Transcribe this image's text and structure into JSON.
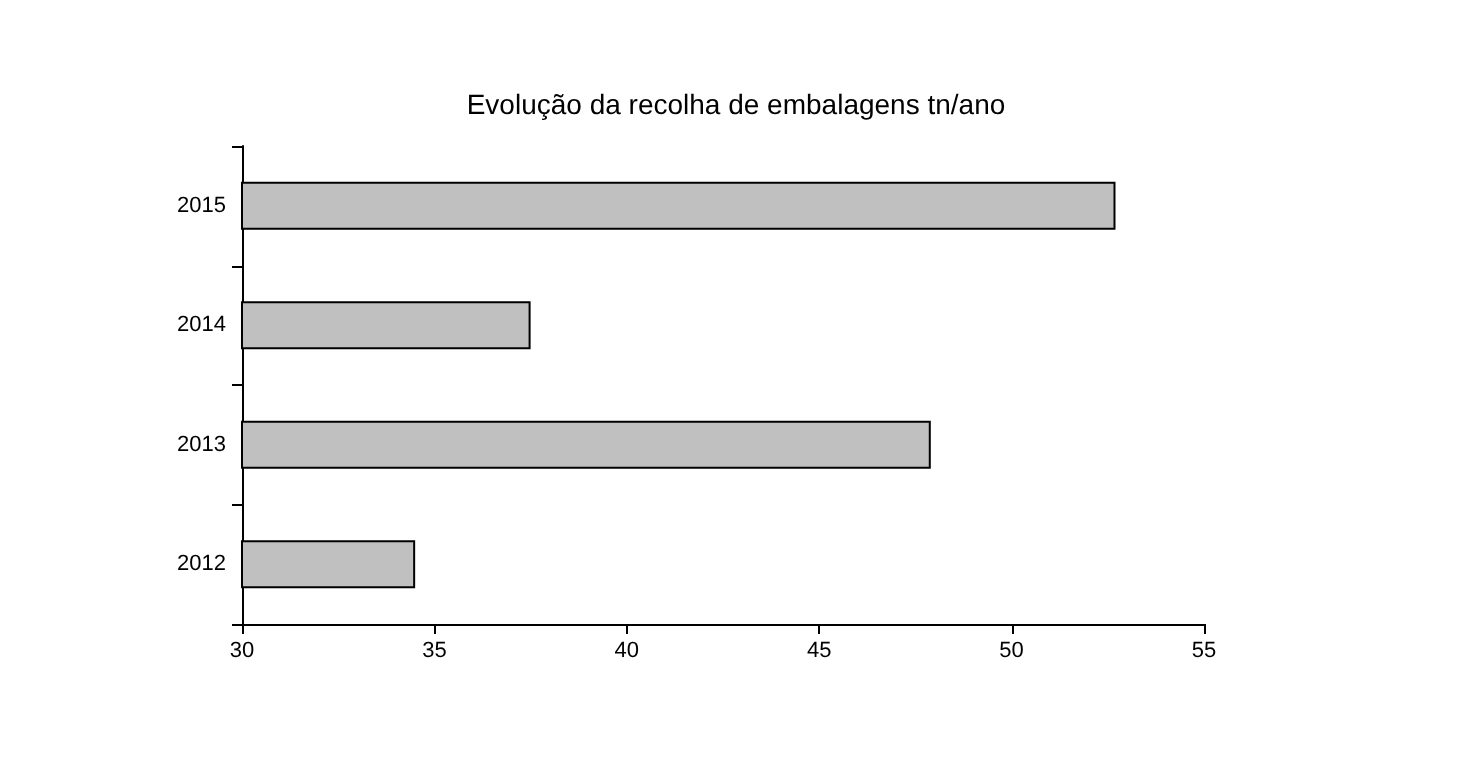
{
  "chart_data": {
    "type": "bar",
    "orientation": "horizontal",
    "title": "Evolução da recolha de embalagens tn/ano",
    "categories": [
      "2015",
      "2014",
      "2013",
      "2012"
    ],
    "values": [
      52.7,
      37.5,
      47.9,
      34.5
    ],
    "color": "#c0c0c0",
    "xlim": [
      30,
      55
    ],
    "xticks": [
      30,
      35,
      40,
      45,
      50,
      55
    ],
    "grid": false
  }
}
